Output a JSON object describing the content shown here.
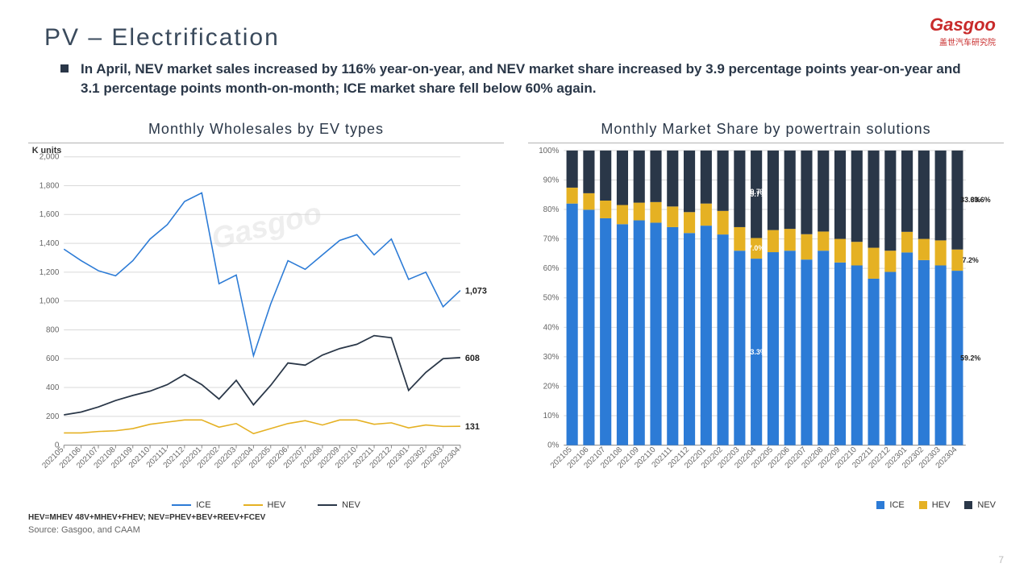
{
  "header": {
    "title": "PV – Electrification",
    "bullet": "In April, NEV market sales increased by 116% year-on-year, and NEV market share increased by 3.9 percentage points year-on-year and 3.1 percentage points month-on-month; ICE market share fell below 60% again."
  },
  "logo": {
    "main": "Gasgoo",
    "sub": "盖世汽车研究院"
  },
  "line_chart": {
    "title": "Monthly  Wholesales  by EV types",
    "y_unit_label": "K units",
    "type": "line",
    "categories": [
      "202105",
      "202106",
      "202107",
      "202108",
      "202109",
      "202110",
      "202111",
      "202112",
      "202201",
      "202202",
      "202203",
      "202204",
      "202205",
      "202206",
      "202207",
      "202208",
      "202209",
      "202210",
      "202211",
      "202212",
      "202301",
      "202302",
      "202303",
      "202304"
    ],
    "ylim": [
      0,
      2000
    ],
    "ytick_step": 200,
    "grid_color": "#d9d9d9",
    "background_color": "#ffffff",
    "series": [
      {
        "name": "ICE",
        "color": "#2c7bd6",
        "width": 1.6,
        "values": [
          1360,
          1280,
          1210,
          1175,
          1280,
          1430,
          1530,
          1690,
          1750,
          1120,
          1180,
          620,
          980,
          1280,
          1220,
          1320,
          1420,
          1460,
          1320,
          1430,
          1150,
          1200,
          960,
          1073
        ],
        "end_label": "1,073"
      },
      {
        "name": "HEV",
        "color": "#e5b123",
        "width": 1.6,
        "values": [
          85,
          85,
          95,
          100,
          115,
          145,
          160,
          175,
          175,
          125,
          150,
          80,
          115,
          150,
          170,
          140,
          175,
          175,
          145,
          155,
          120,
          140,
          130,
          131
        ],
        "end_label": "131"
      },
      {
        "name": "NEV",
        "color": "#2a3748",
        "width": 1.8,
        "values": [
          210,
          230,
          265,
          310,
          345,
          375,
          420,
          490,
          420,
          320,
          450,
          280,
          415,
          570,
          555,
          625,
          670,
          700,
          760,
          745,
          380,
          505,
          600,
          608
        ],
        "end_label": "608"
      }
    ],
    "watermark": "Gasgoo"
  },
  "bar_chart": {
    "title": "Monthly Market Share by powertrain solutions",
    "type": "stacked-bar-100",
    "categories": [
      "202105",
      "202106",
      "202107",
      "202108",
      "202109",
      "202110",
      "202111",
      "202112",
      "202201",
      "202202",
      "202203",
      "202204",
      "202205",
      "202206",
      "202207",
      "202208",
      "202209",
      "202210",
      "202211",
      "202212",
      "202301",
      "202302",
      "202303",
      "202304"
    ],
    "ylim": [
      0,
      100
    ],
    "ytick_step": 10,
    "grid_color": "#d9d9d9",
    "bar_width": 0.68,
    "series": [
      {
        "name": "ICE",
        "color": "#2c7bd6",
        "values": [
          82.0,
          79.9,
          77.0,
          75.0,
          76.3,
          75.5,
          74.0,
          72.0,
          74.5,
          71.5,
          66.0,
          63.3,
          65.5,
          66.0,
          63.0,
          66.0,
          62.0,
          61.0,
          56.5,
          58.8,
          65.4,
          62.8,
          61.0,
          59.2
        ]
      },
      {
        "name": "HEV",
        "color": "#e5b123",
        "values": [
          5.4,
          5.6,
          6.0,
          6.5,
          6.0,
          7.0,
          7.0,
          7.1,
          7.5,
          8.0,
          8.0,
          7.0,
          7.5,
          7.4,
          8.6,
          6.5,
          8.0,
          8.0,
          10.5,
          7.2,
          7.0,
          7.2,
          8.5,
          7.2
        ]
      },
      {
        "name": "NEV",
        "color": "#2a3748",
        "values": [
          12.6,
          14.5,
          17.0,
          18.5,
          17.7,
          17.5,
          19.0,
          20.9,
          18.0,
          20.5,
          26.0,
          29.7,
          27.0,
          26.6,
          28.4,
          27.5,
          30.0,
          31.0,
          33.0,
          34.0,
          27.6,
          30.0,
          30.5,
          33.6
        ]
      }
    ],
    "callouts": [
      {
        "category_index": 11,
        "texts": [
          "29.7%",
          "7.0%",
          "63.3%"
        ]
      },
      {
        "category_index": 23,
        "texts": [
          "33.6%",
          "7.2%",
          "59.2%"
        ]
      }
    ]
  },
  "legend_line": {
    "items": [
      "ICE",
      "HEV",
      "NEV"
    ]
  },
  "legend_bar": {
    "items": [
      "ICE",
      "HEV",
      "NEV"
    ]
  },
  "footnote": "HEV=MHEV 48V+MHEV+FHEV; NEV=PHEV+BEV+REEV+FCEV",
  "source": "Source: Gasgoo, and CAAM",
  "page": "7"
}
